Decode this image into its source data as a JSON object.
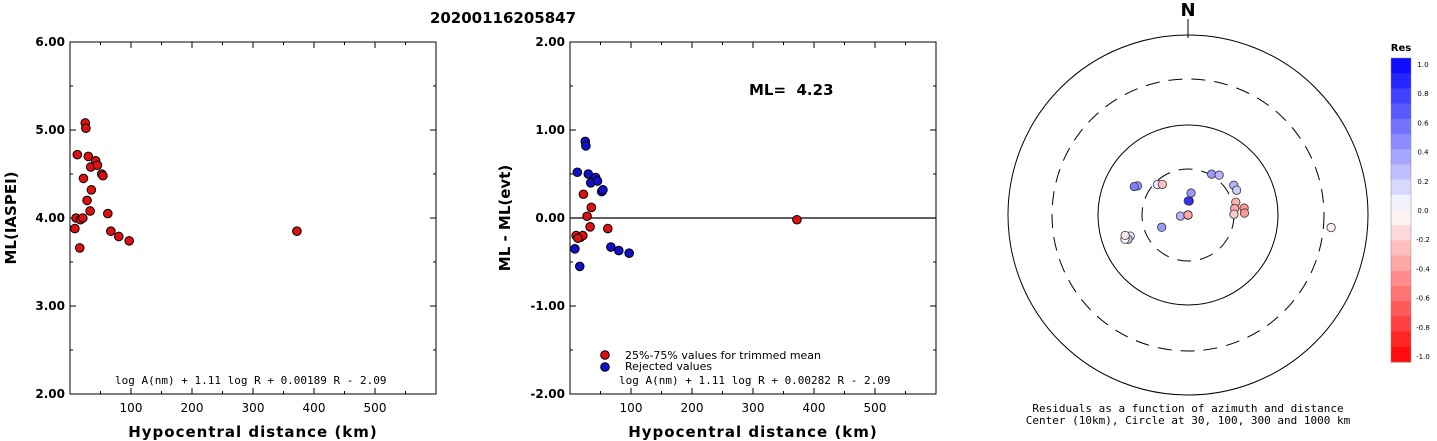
{
  "title": "20200116205847",
  "chart_data": [
    {
      "type": "scatter",
      "xlabel": "Hypocentral distance (km)",
      "ylabel": "ML(IASPEI)",
      "xlim": [
        0,
        600
      ],
      "ylim": [
        2.0,
        6.0
      ],
      "xticks": [
        "100",
        "200",
        "300",
        "400",
        "500"
      ],
      "yticks": [
        "2.00",
        "3.00",
        "4.00",
        "5.00",
        "6.00"
      ],
      "formula": "log A(nm) + 1.11 log R + 0.00189 R - 2.09",
      "points": [
        {
          "x": 25,
          "y": 5.08
        },
        {
          "x": 26,
          "y": 5.02
        },
        {
          "x": 12,
          "y": 4.72
        },
        {
          "x": 30,
          "y": 4.7
        },
        {
          "x": 42,
          "y": 4.65
        },
        {
          "x": 34,
          "y": 4.58
        },
        {
          "x": 45,
          "y": 4.6
        },
        {
          "x": 22,
          "y": 4.45
        },
        {
          "x": 52,
          "y": 4.5
        },
        {
          "x": 54,
          "y": 4.48
        },
        {
          "x": 35,
          "y": 4.32
        },
        {
          "x": 28,
          "y": 4.2
        },
        {
          "x": 33,
          "y": 4.08
        },
        {
          "x": 62,
          "y": 4.05
        },
        {
          "x": 10,
          "y": 4.0
        },
        {
          "x": 17,
          "y": 3.98
        },
        {
          "x": 21,
          "y": 4.0
        },
        {
          "x": 8,
          "y": 3.88
        },
        {
          "x": 67,
          "y": 3.85
        },
        {
          "x": 80,
          "y": 3.79
        },
        {
          "x": 97,
          "y": 3.74
        },
        {
          "x": 16,
          "y": 3.66
        },
        {
          "x": 372,
          "y": 3.85
        }
      ],
      "colors": {
        "point": "#dd1111"
      }
    },
    {
      "type": "scatter",
      "xlabel": "Hypocentral distance (km)",
      "ylabel": "ML - ML(evt)",
      "xlim": [
        0,
        600
      ],
      "ylim": [
        -2.0,
        2.0
      ],
      "xticks": [
        "100",
        "200",
        "300",
        "400",
        "500"
      ],
      "yticks": [
        "-2.00",
        "-1.00",
        "0.00",
        "1.00",
        "2.00"
      ],
      "annotation": "ML=  4.23",
      "formula": "log A(nm) + 1.11 log R + 0.00282 R - 2.09",
      "legend": [
        {
          "label": "25%-75% values for trimmed mean",
          "color": "#dd1111"
        },
        {
          "label": "Rejected values",
          "color": "#1111cc"
        }
      ],
      "series": [
        {
          "name": "25%-75% values for trimmed mean",
          "points": [
            {
              "x": 22,
              "y": 0.27
            },
            {
              "x": 28,
              "y": 0.02
            },
            {
              "x": 35,
              "y": 0.12
            },
            {
              "x": 33,
              "y": -0.1
            },
            {
              "x": 62,
              "y": -0.12
            },
            {
              "x": 10,
              "y": -0.2
            },
            {
              "x": 17,
              "y": -0.22
            },
            {
              "x": 21,
              "y": -0.2
            },
            {
              "x": 13,
              "y": -0.23
            },
            {
              "x": 372,
              "y": -0.02
            }
          ]
        },
        {
          "name": "Rejected values",
          "points": [
            {
              "x": 25,
              "y": 0.87
            },
            {
              "x": 26,
              "y": 0.82
            },
            {
              "x": 12,
              "y": 0.52
            },
            {
              "x": 30,
              "y": 0.5
            },
            {
              "x": 42,
              "y": 0.46
            },
            {
              "x": 34,
              "y": 0.4
            },
            {
              "x": 45,
              "y": 0.42
            },
            {
              "x": 52,
              "y": 0.3
            },
            {
              "x": 54,
              "y": 0.32
            },
            {
              "x": 8,
              "y": -0.35
            },
            {
              "x": 67,
              "y": -0.33
            },
            {
              "x": 80,
              "y": -0.37
            },
            {
              "x": 97,
              "y": -0.4
            },
            {
              "x": 16,
              "y": -0.55
            }
          ]
        }
      ]
    },
    {
      "type": "scatter",
      "subtype": "polar",
      "north_label": "N",
      "caption_lines": [
        "Residuals as a function of azimuth and distance",
        "Center (10km), Circle at 30, 100, 300 and 1000 km"
      ],
      "rings_km": [
        30,
        100,
        300,
        1000
      ],
      "colorbar": {
        "title": "Res",
        "ticks": [
          "1.0",
          "0.8",
          "0.6",
          "0.4",
          "0.2",
          "0.0",
          "-0.2",
          "-0.4",
          "-0.6",
          "-0.8",
          "-1.0"
        ],
        "range": [
          -1.0,
          1.0
        ]
      },
      "points": [
        {
          "azimuth": 315,
          "distance_km": 28,
          "res": 0.06
        },
        {
          "azimuth": 320,
          "distance_km": 26,
          "res": -0.25
        },
        {
          "azimuth": 300,
          "distance_km": 42,
          "res": 0.4
        },
        {
          "azimuth": 298,
          "distance_km": 45,
          "res": 0.5
        },
        {
          "azimuth": 250,
          "distance_km": 46,
          "res": 0.1
        },
        {
          "azimuth": 248,
          "distance_km": 50,
          "res": 0.2
        },
        {
          "azimuth": 249,
          "distance_km": 54,
          "res": 0.0
        },
        {
          "azimuth": 252,
          "distance_km": 52,
          "res": -0.1
        },
        {
          "azimuth": 262,
          "distance_km": 12,
          "res": 0.3
        },
        {
          "azimuth": 245,
          "distance_km": 20,
          "res": 0.4
        },
        {
          "azimuth": 265,
          "distance_km": 5,
          "res": 0.35
        },
        {
          "azimuth": 8,
          "distance_km": 17,
          "res": 0.4
        },
        {
          "azimuth": 5,
          "distance_km": 14,
          "res": 0.85
        },
        {
          "azimuth": 1,
          "distance_km": 14,
          "res": 0.8
        },
        {
          "azimuth": 30,
          "distance_km": 31,
          "res": 0.4
        },
        {
          "azimuth": 38,
          "distance_km": 34,
          "res": 0.3
        },
        {
          "azimuth": 57,
          "distance_km": 38,
          "res": 0.3
        },
        {
          "azimuth": 63,
          "distance_km": 38,
          "res": 0.2
        },
        {
          "azimuth": 75,
          "distance_km": 33,
          "res": -0.3
        },
        {
          "azimuth": 82,
          "distance_km": 31,
          "res": -0.35
        },
        {
          "azimuth": 83,
          "distance_km": 40,
          "res": -0.4
        },
        {
          "azimuth": 89,
          "distance_km": 30,
          "res": -0.2
        },
        {
          "azimuth": 88,
          "distance_km": 40,
          "res": -0.4
        },
        {
          "azimuth": 120,
          "distance_km": 3,
          "res": -0.15
        },
        {
          "azimuth": 70,
          "distance_km": 8,
          "res": -0.2
        },
        {
          "azimuth": 80,
          "distance_km": 7,
          "res": -0.25
        },
        {
          "azimuth": 150,
          "distance_km": 5,
          "res": -0.35
        },
        {
          "azimuth": 95,
          "distance_km": 370,
          "res": -0.05
        }
      ]
    }
  ]
}
